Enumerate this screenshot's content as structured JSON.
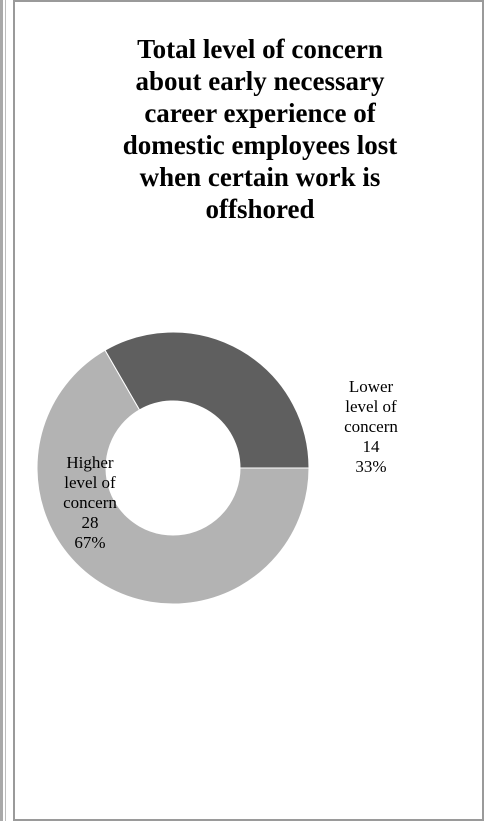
{
  "chart_data": {
    "type": "pie",
    "style": "donut",
    "title": "Total level of concern\nabout early necessary\ncareer experience of\ndomestic employees lost\nwhen certain work is\noffshored",
    "slices": [
      {
        "label": "Lower level of concern",
        "label_lines": [
          "Lower",
          "level of",
          "concern"
        ],
        "value": 14,
        "value_text": "14",
        "percent_text": "33%",
        "color": "#5f5f5f"
      },
      {
        "label": "Higher level of concern",
        "label_lines": [
          "Higher",
          "level of",
          "concern"
        ],
        "value": 28,
        "value_text": "28",
        "percent_text": "67%",
        "color": "#b3b3b3"
      }
    ],
    "legend": "none"
  }
}
